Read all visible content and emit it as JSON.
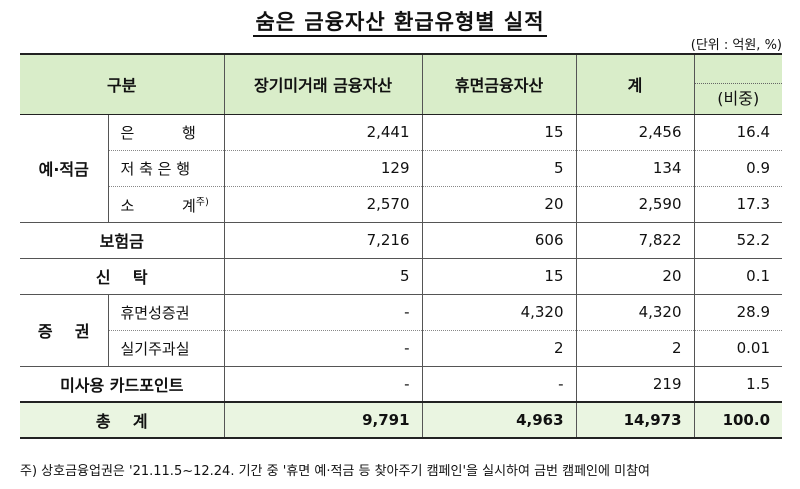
{
  "title": "숨은 금융자산 환급유형별 실적",
  "unit": "(단위 : 억원, %)",
  "headers": {
    "category": "구분",
    "long_term": "장기미거래 금융자산",
    "dormant": "휴면금융자산",
    "total": "계",
    "share": "(비중)"
  },
  "rows": [
    {
      "group": "예·적금",
      "sub": "은          행",
      "long_term": "2,441",
      "dormant": "15",
      "total": "2,456",
      "share": "16.4"
    },
    {
      "sub": "저 축 은 행",
      "long_term": "129",
      "dormant": "5",
      "total": "134",
      "share": "0.9"
    },
    {
      "sub": "소          계",
      "sub_mark": "주)",
      "long_term": "2,570",
      "dormant": "20",
      "total": "2,590",
      "share": "17.3"
    },
    {
      "group": "보험금",
      "long_term": "7,216",
      "dormant": "606",
      "total": "7,822",
      "share": "52.2"
    },
    {
      "group": "신    탁",
      "long_term": "5",
      "dormant": "15",
      "total": "20",
      "share": "0.1"
    },
    {
      "group": "증    권",
      "sub": "휴면성증권",
      "long_term": "-",
      "dormant": "4,320",
      "total": "4,320",
      "share": "28.9"
    },
    {
      "sub": "실기주과실",
      "long_term": "-",
      "dormant": "2",
      "total": "2",
      "share": "0.01"
    },
    {
      "group": "미사용 카드포인트",
      "long_term": "-",
      "dormant": "-",
      "total": "219",
      "share": "1.5"
    },
    {
      "group": "총    계",
      "long_term": "9,791",
      "dormant": "4,963",
      "total": "14,973",
      "share": "100.0"
    }
  ],
  "note": "주) 상호금융업권은 '21.11.5~12.24. 기간 중 '휴면 예·적금 등 찾아주기 캠페인'을 실시하여 금번 캠페인에 미참여"
}
